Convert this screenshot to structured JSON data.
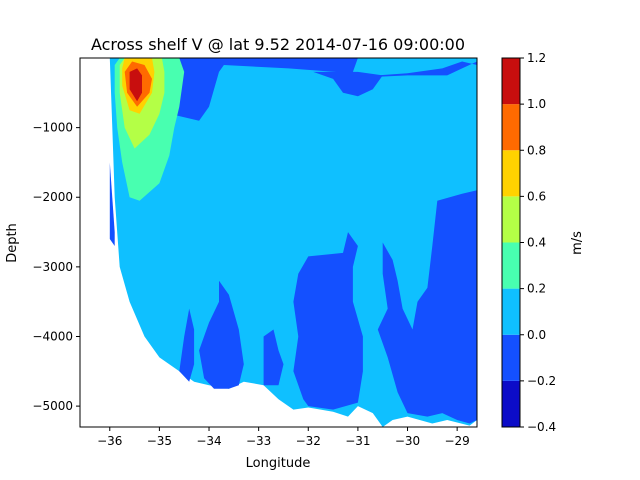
{
  "chart_data": {
    "type": "contourf",
    "title": "Across shelf V @ lat 9.52 2014-07-16 09:00:00",
    "xlabel": "Longitude",
    "ylabel": "Depth",
    "xlim": [
      -36.6,
      -28.6
    ],
    "ylim": [
      -5300,
      0
    ],
    "x_ticks": [
      -36,
      -35,
      -34,
      -33,
      -32,
      -31,
      -30,
      -29
    ],
    "x_tick_labels": [
      "−36",
      "−35",
      "−34",
      "−33",
      "−32",
      "−31",
      "−30",
      "−29"
    ],
    "y_ticks": [
      -1000,
      -2000,
      -3000,
      -4000,
      -5000
    ],
    "y_tick_labels": [
      "−1000",
      "−2000",
      "−3000",
      "−4000",
      "−5000"
    ],
    "colorbar": {
      "label": "m/s",
      "levels": [
        -0.4,
        -0.2,
        0.0,
        0.2,
        0.4,
        0.6,
        0.8,
        1.0,
        1.2
      ],
      "tick_labels": [
        "−0.4",
        "−0.2",
        "0.0",
        "0.2",
        "0.4",
        "0.6",
        "0.8",
        "1.0",
        "1.2"
      ],
      "colors": [
        "#0c0cc8",
        "#1450ff",
        "#0fc0ff",
        "#48ffb0",
        "#b4ff46",
        "#ffd200",
        "#ff6a00",
        "#c80e0e"
      ]
    },
    "regions": [
      {
        "level_index": 2,
        "points": [
          [
            -36.0,
            0
          ],
          [
            -28.6,
            0
          ],
          [
            -28.6,
            -5200
          ],
          [
            -28.75,
            -5280
          ],
          [
            -29.2,
            -5200
          ],
          [
            -29.5,
            -5250
          ],
          [
            -30.0,
            -5150
          ],
          [
            -30.3,
            -5200
          ],
          [
            -30.5,
            -5300
          ],
          [
            -30.7,
            -5100
          ],
          [
            -31.0,
            -5000
          ],
          [
            -31.2,
            -5150
          ],
          [
            -31.5,
            -5080
          ],
          [
            -32.0,
            -5020
          ],
          [
            -32.3,
            -5050
          ],
          [
            -32.6,
            -4900
          ],
          [
            -32.9,
            -4700
          ],
          [
            -33.3,
            -4650
          ],
          [
            -33.6,
            -4750
          ],
          [
            -34.0,
            -4700
          ],
          [
            -34.3,
            -4650
          ],
          [
            -34.6,
            -4500
          ],
          [
            -35.0,
            -4300
          ],
          [
            -35.3,
            -4000
          ],
          [
            -35.6,
            -3500
          ],
          [
            -35.8,
            -3000
          ],
          [
            -35.9,
            -2000
          ],
          [
            -35.95,
            -1000
          ]
        ]
      },
      {
        "level_index": 1,
        "points": [
          [
            -35.0,
            -200
          ],
          [
            -34.9,
            0
          ],
          [
            -31.0,
            0
          ],
          [
            -31.1,
            -200
          ],
          [
            -30.6,
            -250
          ],
          [
            -30.0,
            -220
          ],
          [
            -29.3,
            -150
          ],
          [
            -28.9,
            -50
          ],
          [
            -28.6,
            -100
          ],
          [
            -28.6,
            -50
          ],
          [
            -28.9,
            -150
          ],
          [
            -29.2,
            -250
          ],
          [
            -30.0,
            -250
          ],
          [
            -30.6,
            -270
          ],
          [
            -31.1,
            -220
          ],
          [
            -32.4,
            -150
          ],
          [
            -33.7,
            -100
          ],
          [
            -33.8,
            -200
          ],
          [
            -34.0,
            -700
          ],
          [
            -34.2,
            -900
          ],
          [
            -34.8,
            -800
          ],
          [
            -35.0,
            -400
          ]
        ]
      },
      {
        "level_index": 1,
        "points": [
          [
            -31.9,
            -200
          ],
          [
            -31.5,
            -300
          ],
          [
            -31.3,
            -500
          ],
          [
            -31.0,
            -550
          ],
          [
            -30.7,
            -450
          ],
          [
            -30.5,
            -250
          ],
          [
            -31.0,
            -200
          ]
        ]
      },
      {
        "level_index": 1,
        "points": [
          [
            -36.0,
            -1500
          ],
          [
            -35.9,
            -2500
          ],
          [
            -35.9,
            -2700
          ],
          [
            -36.0,
            -2600
          ]
        ]
      },
      {
        "level_index": 1,
        "points": [
          [
            -33.8,
            -3200
          ],
          [
            -33.6,
            -3400
          ],
          [
            -33.4,
            -3900
          ],
          [
            -33.3,
            -4400
          ],
          [
            -33.4,
            -4700
          ],
          [
            -33.6,
            -4750
          ],
          [
            -33.9,
            -4750
          ],
          [
            -34.1,
            -4600
          ],
          [
            -34.2,
            -4200
          ],
          [
            -34.0,
            -3800
          ],
          [
            -33.8,
            -3500
          ]
        ]
      },
      {
        "level_index": 1,
        "points": [
          [
            -34.4,
            -3600
          ],
          [
            -34.5,
            -4000
          ],
          [
            -34.6,
            -4500
          ],
          [
            -34.4,
            -4650
          ],
          [
            -34.3,
            -4400
          ],
          [
            -34.3,
            -3900
          ]
        ]
      },
      {
        "level_index": 1,
        "points": [
          [
            -32.9,
            -4000
          ],
          [
            -32.9,
            -4700
          ],
          [
            -32.6,
            -4700
          ],
          [
            -32.5,
            -4400
          ],
          [
            -32.6,
            -4200
          ],
          [
            -32.7,
            -3900
          ]
        ]
      },
      {
        "level_index": 1,
        "points": [
          [
            -31.2,
            -2500
          ],
          [
            -31.3,
            -2800
          ],
          [
            -32.0,
            -2850
          ],
          [
            -32.2,
            -3100
          ],
          [
            -32.3,
            -3500
          ],
          [
            -32.2,
            -4000
          ],
          [
            -32.3,
            -4500
          ],
          [
            -32.1,
            -4900
          ],
          [
            -32.0,
            -5000
          ],
          [
            -31.5,
            -5050
          ],
          [
            -31.0,
            -4950
          ],
          [
            -30.9,
            -4500
          ],
          [
            -30.9,
            -4000
          ],
          [
            -31.1,
            -3500
          ],
          [
            -31.1,
            -3000
          ],
          [
            -31.0,
            -2700
          ]
        ]
      },
      {
        "level_index": 1,
        "points": [
          [
            -30.5,
            -2650
          ],
          [
            -30.5,
            -3100
          ],
          [
            -30.4,
            -3600
          ],
          [
            -30.6,
            -3900
          ],
          [
            -30.4,
            -4300
          ],
          [
            -30.2,
            -4800
          ],
          [
            -30.0,
            -5100
          ],
          [
            -29.6,
            -5150
          ],
          [
            -29.3,
            -5100
          ],
          [
            -29.0,
            -5200
          ],
          [
            -28.75,
            -5250
          ],
          [
            -28.6,
            -5200
          ],
          [
            -28.6,
            -1900
          ],
          [
            -28.9,
            -1950
          ],
          [
            -29.4,
            -2050
          ],
          [
            -29.5,
            -2700
          ],
          [
            -29.6,
            -3300
          ],
          [
            -29.8,
            -3500
          ],
          [
            -29.9,
            -3900
          ],
          [
            -30.1,
            -3600
          ],
          [
            -30.2,
            -3200
          ],
          [
            -30.3,
            -2900
          ]
        ]
      },
      {
        "level_index": 3,
        "points": [
          [
            -35.9,
            -100
          ],
          [
            -35.8,
            0
          ],
          [
            -34.6,
            0
          ],
          [
            -34.5,
            -200
          ],
          [
            -34.6,
            -700
          ],
          [
            -34.7,
            -1000
          ],
          [
            -34.8,
            -1400
          ],
          [
            -35.0,
            -1800
          ],
          [
            -35.4,
            -2050
          ],
          [
            -35.6,
            -2000
          ],
          [
            -35.75,
            -1500
          ],
          [
            -35.85,
            -1000
          ],
          [
            -35.9,
            -500
          ]
        ]
      },
      {
        "level_index": 4,
        "points": [
          [
            -35.8,
            -100
          ],
          [
            -35.7,
            0
          ],
          [
            -34.95,
            0
          ],
          [
            -34.9,
            -200
          ],
          [
            -34.9,
            -500
          ],
          [
            -35.0,
            -800
          ],
          [
            -35.2,
            -1100
          ],
          [
            -35.5,
            -1300
          ],
          [
            -35.7,
            -1000
          ],
          [
            -35.8,
            -500
          ]
        ]
      },
      {
        "level_index": 5,
        "points": [
          [
            -35.75,
            -150
          ],
          [
            -35.7,
            0
          ],
          [
            -35.15,
            0
          ],
          [
            -35.1,
            -200
          ],
          [
            -35.15,
            -500
          ],
          [
            -35.4,
            -800
          ],
          [
            -35.6,
            -750
          ],
          [
            -35.75,
            -400
          ]
        ]
      },
      {
        "level_index": 6,
        "points": [
          [
            -35.7,
            -200
          ],
          [
            -35.55,
            -50
          ],
          [
            -35.3,
            -100
          ],
          [
            -35.15,
            -300
          ],
          [
            -35.2,
            -500
          ],
          [
            -35.45,
            -700
          ],
          [
            -35.65,
            -500
          ]
        ]
      },
      {
        "level_index": 7,
        "points": [
          [
            -35.6,
            -200
          ],
          [
            -35.45,
            -150
          ],
          [
            -35.35,
            -250
          ],
          [
            -35.35,
            -500
          ],
          [
            -35.45,
            -620
          ],
          [
            -35.6,
            -450
          ]
        ]
      }
    ]
  }
}
